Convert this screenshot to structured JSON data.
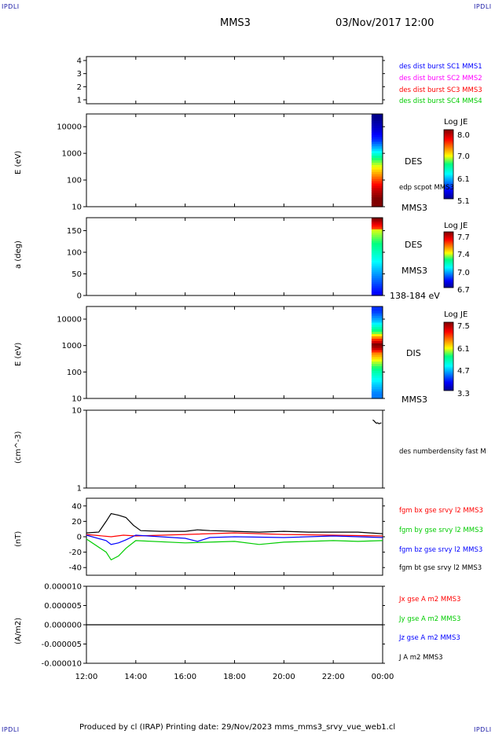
{
  "corner_labels": {
    "top_left": "IPDLI",
    "top_right": "IPDLI",
    "bottom_left": "IPDLI",
    "bottom_right": "IPDLI"
  },
  "header": {
    "spacecraft": "MMS3",
    "datetime": "03/Nov/2017 12:00"
  },
  "footer": {
    "text": "Produced by cl (IRAP)   Printing date: 29/Nov/2023   mms_mms3_srvy_vue_web1.cl"
  },
  "x_axis": {
    "ticks": [
      "12:00",
      "14:00",
      "16:00",
      "18:00",
      "20:00",
      "22:00",
      "00:00"
    ],
    "hours": [
      12,
      14,
      16,
      18,
      20,
      22,
      24
    ],
    "range": [
      12,
      24
    ]
  },
  "colors": {
    "blue": "#0000ff",
    "magenta": "#ff00ff",
    "red": "#ff0000",
    "green": "#00cc00",
    "black": "#000000",
    "corner": "#1a1aa6"
  },
  "chart_data": [
    {
      "type": "scatter",
      "panel": "burst-indicator",
      "ylabel": "",
      "ylim": [
        0.7,
        4.3
      ],
      "yticks": [
        1,
        2,
        3,
        4
      ],
      "ytick_labels": [
        "1",
        "2",
        "3",
        "4"
      ],
      "legend": [
        {
          "name": "des dist burst SC1 MMS1",
          "color": "#0000ff"
        },
        {
          "name": "des dist burst SC2 MMS2",
          "color": "#ff00ff"
        },
        {
          "name": "des dist burst SC3 MMS3",
          "color": "#ff0000"
        },
        {
          "name": "des dist burst SC4 MMS4",
          "color": "#00cc00"
        }
      ],
      "series": []
    },
    {
      "type": "heatmap",
      "panel": "des-energy-spectrogram",
      "ylabel": "E (eV)",
      "yscale": "log",
      "ylim": [
        10,
        30000
      ],
      "yticks": [
        10,
        100,
        1000,
        10000
      ],
      "ytick_labels": [
        "10",
        "100",
        "1000",
        "10000"
      ],
      "x_coverage": [
        23.55,
        24.0
      ],
      "profile": [
        {
          "energy": 20,
          "value": 8.0
        },
        {
          "energy": 40,
          "value": 7.8
        },
        {
          "energy": 80,
          "value": 7.5
        },
        {
          "energy": 150,
          "value": 7.2
        },
        {
          "energy": 300,
          "value": 6.9
        },
        {
          "energy": 600,
          "value": 6.6
        },
        {
          "energy": 1200,
          "value": 6.1
        },
        {
          "energy": 3000,
          "value": 5.6
        },
        {
          "energy": 8000,
          "value": 5.3
        },
        {
          "energy": 20000,
          "value": 5.1
        }
      ],
      "annotation": "DES",
      "extra_labels": [
        "edp scpot MMS3",
        "MMS3"
      ],
      "colorbar": {
        "title": "Log JE",
        "ticks": [
          "8.0",
          "7.0",
          "6.1",
          "5.1"
        ],
        "values": [
          8.0,
          7.0,
          6.1,
          5.1
        ],
        "range": [
          5.1,
          8.0
        ]
      }
    },
    {
      "type": "heatmap",
      "panel": "des-pitch-angle",
      "ylabel": "a (deg)",
      "ylim": [
        0,
        180
      ],
      "yticks": [
        0,
        50,
        100,
        150
      ],
      "ytick_labels": [
        "0",
        "50",
        "100",
        "150"
      ],
      "x_coverage": [
        23.55,
        24.0
      ],
      "annotation": "DES",
      "extra_labels": [
        "MMS3",
        "138-184 eV"
      ],
      "colorbar": {
        "title": "Log JE",
        "ticks": [
          "7.7",
          "7.4",
          "7.0",
          "6.7"
        ],
        "values": [
          7.7,
          7.4,
          7.0,
          6.7
        ],
        "range": [
          6.7,
          7.7
        ]
      }
    },
    {
      "type": "heatmap",
      "panel": "dis-energy-spectrogram",
      "ylabel": "E (eV)",
      "yscale": "log",
      "ylim": [
        10,
        30000
      ],
      "yticks": [
        10,
        100,
        1000,
        10000
      ],
      "ytick_labels": [
        "10",
        "100",
        "1000",
        "10000"
      ],
      "x_coverage": [
        23.55,
        24.0
      ],
      "profile": [
        {
          "energy": 15,
          "value": 4.3
        },
        {
          "energy": 40,
          "value": 4.7
        },
        {
          "energy": 100,
          "value": 5.2
        },
        {
          "energy": 250,
          "value": 5.8
        },
        {
          "energy": 500,
          "value": 6.4
        },
        {
          "energy": 800,
          "value": 7.3
        },
        {
          "energy": 1100,
          "value": 7.5
        },
        {
          "energy": 1600,
          "value": 6.8
        },
        {
          "energy": 3000,
          "value": 5.6
        },
        {
          "energy": 8000,
          "value": 4.6
        },
        {
          "energy": 20000,
          "value": 4.0
        }
      ],
      "annotation": "DIS",
      "extra_labels": [
        "MMS3"
      ],
      "colorbar": {
        "title": "Log JE",
        "ticks": [
          "7.5",
          "6.1",
          "4.7",
          "3.3"
        ],
        "values": [
          7.5,
          6.1,
          4.7,
          3.3
        ],
        "range": [
          3.3,
          7.5
        ]
      }
    },
    {
      "type": "line",
      "panel": "electron-density",
      "ylabel": "(cm^-3)",
      "yscale": "log",
      "ylim": [
        1,
        10
      ],
      "yticks": [
        1,
        10
      ],
      "ytick_labels": [
        "1",
        "10"
      ],
      "legend": [
        {
          "name": "des numberdensity fast M",
          "color": "#000000"
        }
      ],
      "series": [
        {
          "color": "#000000",
          "x": [
            23.6,
            23.65,
            23.7,
            23.75,
            23.8,
            23.85,
            23.9,
            23.95
          ],
          "y": [
            7.5,
            7.3,
            7.0,
            6.8,
            6.9,
            6.7,
            6.8,
            6.9
          ]
        }
      ]
    },
    {
      "type": "line",
      "panel": "magnetic-field",
      "ylabel": "(nT)",
      "ylim": [
        -50,
        50
      ],
      "yticks": [
        -40,
        -20,
        0,
        20,
        40
      ],
      "ytick_labels": [
        "-40",
        "-20",
        "0",
        "20",
        "40"
      ],
      "legend": [
        {
          "name": "fgm bx gse srvy l2 MMS3",
          "color": "#ff0000"
        },
        {
          "name": "fgm by gse srvy l2 MMS3",
          "color": "#00cc00"
        },
        {
          "name": "fgm bz gse srvy l2 MMS3",
          "color": "#0000ff"
        },
        {
          "name": "fgm bt gse srvy l2 MMS3",
          "color": "#000000"
        }
      ],
      "series": [
        {
          "color": "#000000",
          "x": [
            12,
            12.5,
            12.8,
            13.0,
            13.3,
            13.6,
            13.9,
            14.2,
            15,
            16,
            16.5,
            17,
            18,
            19,
            20,
            21,
            22,
            23,
            23.5,
            24
          ],
          "y": [
            5,
            6,
            20,
            30,
            28,
            25,
            15,
            8,
            7,
            7,
            9,
            8,
            7,
            6,
            7,
            6,
            6,
            6,
            5,
            4
          ]
        },
        {
          "color": "#ff0000",
          "x": [
            12,
            13,
            13.5,
            14,
            16,
            18,
            20,
            22,
            24
          ],
          "y": [
            3,
            0,
            2,
            1,
            3,
            5,
            3,
            2,
            1
          ]
        },
        {
          "color": "#00cc00",
          "x": [
            12,
            12.8,
            13.0,
            13.3,
            13.6,
            14,
            16,
            18,
            19,
            20,
            22,
            23,
            24
          ],
          "y": [
            -3,
            -20,
            -30,
            -25,
            -15,
            -5,
            -8,
            -6,
            -10,
            -7,
            -5,
            -6,
            -5
          ]
        },
        {
          "color": "#0000ff",
          "x": [
            12,
            12.8,
            13.0,
            13.3,
            13.6,
            14,
            16,
            16.5,
            17,
            18,
            20,
            22,
            24
          ],
          "y": [
            2,
            -5,
            -10,
            -8,
            -4,
            2,
            -2,
            -6,
            -1,
            0,
            -1,
            1,
            -1
          ]
        }
      ]
    },
    {
      "type": "line",
      "panel": "current-density",
      "ylabel": "(A/m2)",
      "ylim": [
        -1e-05,
        1e-05
      ],
      "yticks": [
        -1e-05,
        -5e-06,
        0,
        5e-06,
        1e-05
      ],
      "ytick_labels": [
        "-0.000010",
        "-0.000005",
        "0.000000",
        "0.000005",
        "0.000010"
      ],
      "legend": [
        {
          "name": "Jx gse A m2 MMS3",
          "color": "#ff0000"
        },
        {
          "name": "Jy gse A m2 MMS3",
          "color": "#00cc00"
        },
        {
          "name": "Jz gse A m2 MMS3",
          "color": "#0000ff"
        },
        {
          "name": "J A m2 MMS3",
          "color": "#000000"
        }
      ],
      "series": [
        {
          "color": "#000000",
          "x": [
            12,
            13,
            14,
            16,
            18,
            20,
            22,
            24
          ],
          "y": [
            0,
            0,
            0,
            0,
            0,
            0,
            0,
            0
          ]
        }
      ]
    }
  ]
}
